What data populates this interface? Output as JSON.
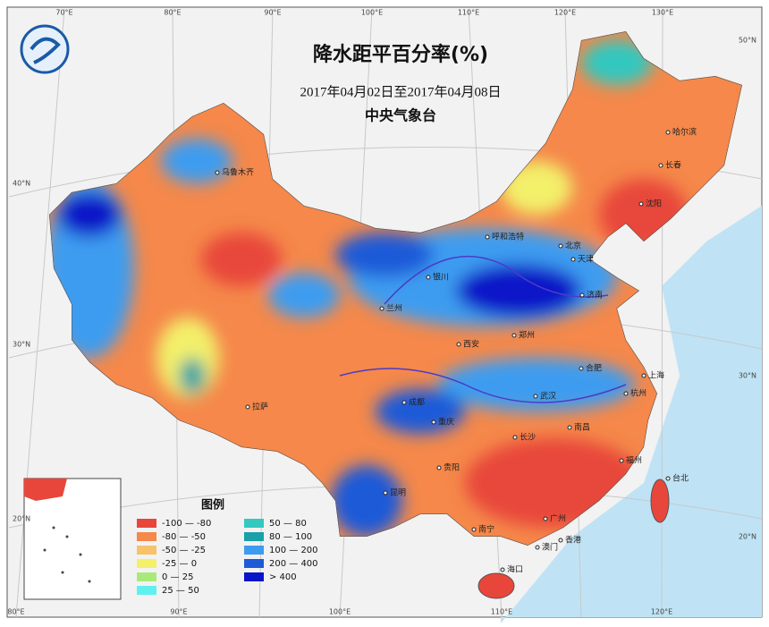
{
  "header": {
    "title": "降水距平百分率(%)",
    "date_range": "2017年04月02日至2017年04月08日",
    "issuer": "中央气象台"
  },
  "legend": {
    "title": "图例",
    "items": [
      {
        "label": "-100 — -80",
        "color": "#e8463a"
      },
      {
        "label": "-80 — -50",
        "color": "#f5884a"
      },
      {
        "label": "-50 — -25",
        "color": "#f7c26a"
      },
      {
        "label": "-25 — 0",
        "color": "#f3f06a"
      },
      {
        "label": "0 — 25",
        "color": "#a8ea7a"
      },
      {
        "label": "25 — 50",
        "color": "#5ff0f0"
      },
      {
        "label": "50 — 80",
        "color": "#33c8c0"
      },
      {
        "label": "80 — 100",
        "color": "#1aa0a8"
      },
      {
        "label": "100 — 200",
        "color": "#3c9cf0"
      },
      {
        "label": "200 — 400",
        "color": "#1e5ad8"
      },
      {
        "label": "> 400",
        "color": "#0a14c8"
      }
    ]
  },
  "longitude_labels_top": [
    "70°E",
    "80°E",
    "90°E",
    "100°E",
    "110°E",
    "120°E",
    "130°E"
  ],
  "longitude_labels_bottom": [
    "80°E",
    "90°E",
    "100°E",
    "110°E",
    "120°E"
  ],
  "latitude_labels_left": [
    "40°N",
    "30°N",
    "20°N"
  ],
  "latitude_labels_right": [
    "50°N",
    "30°N",
    "20°N"
  ],
  "cities": [
    "乌鲁木齐",
    "哈尔滨",
    "长春",
    "沈阳",
    "呼和浩特",
    "北京",
    "天津",
    "银川",
    "济南",
    "兰州",
    "拉萨",
    "成都",
    "重庆",
    "西安",
    "郑州",
    "合肥",
    "上海",
    "武汉",
    "杭州",
    "长沙",
    "南昌",
    "贵阳",
    "昆明",
    "福州",
    "台北",
    "南宁",
    "广州",
    "香港",
    "澳门",
    "海口"
  ]
}
